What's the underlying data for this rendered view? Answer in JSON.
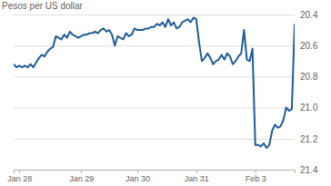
{
  "chart_data": {
    "type": "line",
    "subtitle": "Pesos per US dollar",
    "categories": [
      null,
      null,
      "Jan 28",
      null,
      null,
      null,
      null,
      null,
      null,
      null,
      null,
      null,
      null,
      null,
      null,
      null,
      null,
      null,
      null,
      null,
      null,
      null,
      null,
      null,
      "Jan 29",
      null,
      null,
      null,
      null,
      null,
      null,
      null,
      null,
      null,
      null,
      null,
      null,
      null,
      null,
      null,
      null,
      null,
      null,
      null,
      "Jan 30",
      null,
      null,
      null,
      null,
      null,
      null,
      null,
      null,
      null,
      null,
      null,
      null,
      null,
      null,
      null,
      null,
      null,
      null,
      null,
      null,
      "Jan 31",
      null,
      null,
      null,
      null,
      null,
      null,
      null,
      null,
      null,
      null,
      null,
      null,
      null,
      null,
      null,
      null,
      null,
      null,
      null,
      null,
      "Feb 3",
      null,
      null,
      null,
      null,
      null,
      null,
      null,
      null,
      null,
      null,
      null,
      null,
      null,
      null
    ],
    "values": [
      20.72,
      20.74,
      20.73,
      20.74,
      20.73,
      20.74,
      20.72,
      20.74,
      20.71,
      20.68,
      20.66,
      20.67,
      20.64,
      20.62,
      20.61,
      20.54,
      20.55,
      20.56,
      20.53,
      20.55,
      20.51,
      20.53,
      20.54,
      20.55,
      20.54,
      20.53,
      20.53,
      20.52,
      20.52,
      20.51,
      20.52,
      20.5,
      20.49,
      20.51,
      20.5,
      20.53,
      20.6,
      20.54,
      20.55,
      20.56,
      20.52,
      20.54,
      20.53,
      20.49,
      20.5,
      20.5,
      20.5,
      20.49,
      20.49,
      20.48,
      20.48,
      20.46,
      20.47,
      20.45,
      20.48,
      20.43,
      20.47,
      20.45,
      20.49,
      20.48,
      20.45,
      20.44,
      20.43,
      20.45,
      20.42,
      20.43,
      20.58,
      20.7,
      20.68,
      20.65,
      20.68,
      20.72,
      20.7,
      20.69,
      20.66,
      20.69,
      20.65,
      20.67,
      20.72,
      20.7,
      20.67,
      20.65,
      20.5,
      20.69,
      20.7,
      20.62,
      21.24,
      21.24,
      21.25,
      21.23,
      21.26,
      21.24,
      21.15,
      21.11,
      21.13,
      21.12,
      21.08,
      21.0,
      21.02,
      21.01,
      20.46
    ],
    "color": "#1f5c99",
    "ylim": [
      21.4,
      20.4
    ],
    "yticks": [
      20.4,
      20.6,
      20.8,
      {
        "value": 21,
        "label": "21.0"
      },
      21.2,
      21.4
    ],
    "grid": true
  }
}
